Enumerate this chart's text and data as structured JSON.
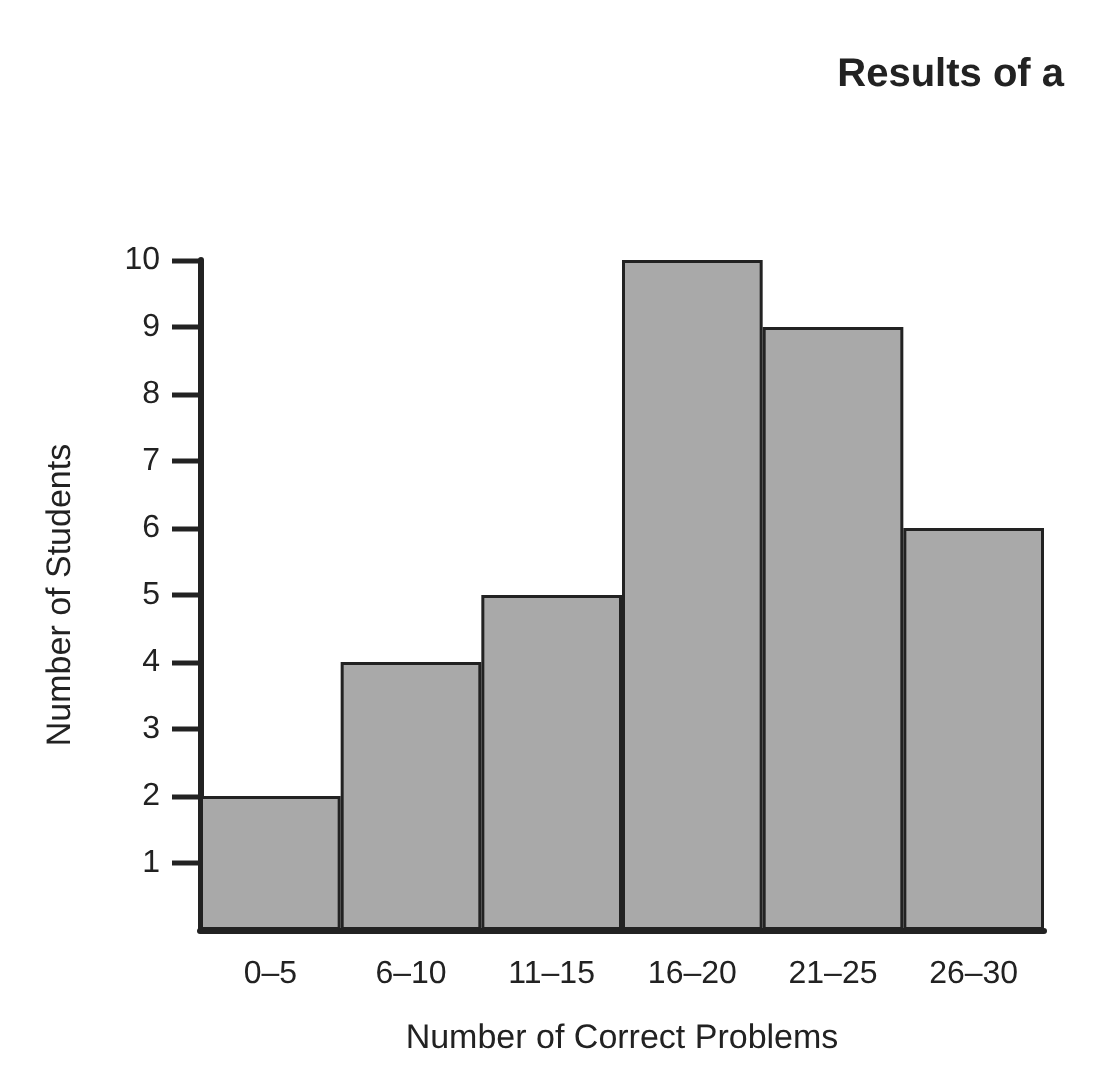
{
  "chart_data": {
    "type": "bar",
    "title": "Results of a",
    "xlabel": "Number of Correct Problems",
    "ylabel": "Number of Students",
    "categories": [
      "0–5",
      "6–10",
      "11–15",
      "16–20",
      "21–25",
      "26–30"
    ],
    "values": [
      2,
      4,
      5,
      10,
      9,
      6
    ],
    "color": "#a9a9a9",
    "ylim": [
      0,
      10
    ],
    "yticks": [
      1,
      2,
      3,
      4,
      5,
      6,
      7,
      8,
      9,
      10
    ],
    "grid": false
  }
}
